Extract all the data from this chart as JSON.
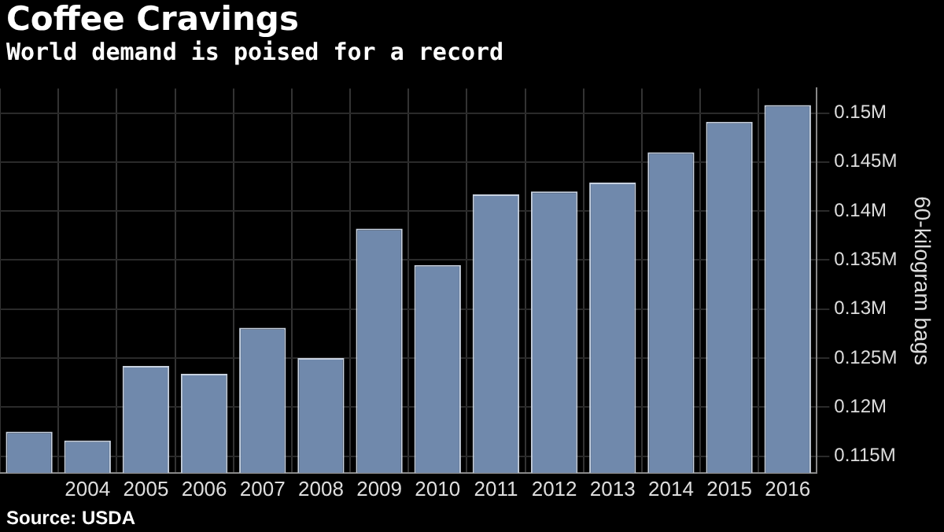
{
  "chart_data": {
    "type": "bar",
    "title": "Coffee Cravings",
    "subtitle": "World demand is poised for a record",
    "ylabel": "60-kilogram bags",
    "categories": [
      null,
      "2004",
      "2005",
      "2006",
      "2007",
      "2008",
      "2009",
      "2010",
      "2011",
      "2012",
      "2013",
      "2014",
      "2015",
      "2016"
    ],
    "values": [
      0.1175,
      0.1166,
      0.1242,
      0.1234,
      0.1281,
      0.125,
      0.1382,
      0.1345,
      0.1417,
      0.142,
      0.1429,
      0.146,
      0.1491,
      0.1508
    ],
    "color": "#7089ac",
    "ylim": [
      0.1133,
      0.1525
    ],
    "yticks": [
      {
        "value": 0.115,
        "label": "0.115M"
      },
      {
        "value": 0.12,
        "label": "0.12M"
      },
      {
        "value": 0.125,
        "label": "0.125M"
      },
      {
        "value": 0.13,
        "label": "0.13M"
      },
      {
        "value": 0.135,
        "label": "0.135M"
      },
      {
        "value": 0.14,
        "label": "0.14M"
      },
      {
        "value": 0.145,
        "label": "0.145M"
      },
      {
        "value": 0.15,
        "label": "0.15M"
      }
    ],
    "grid": true,
    "annotations": [
      "Source: USDA"
    ]
  }
}
